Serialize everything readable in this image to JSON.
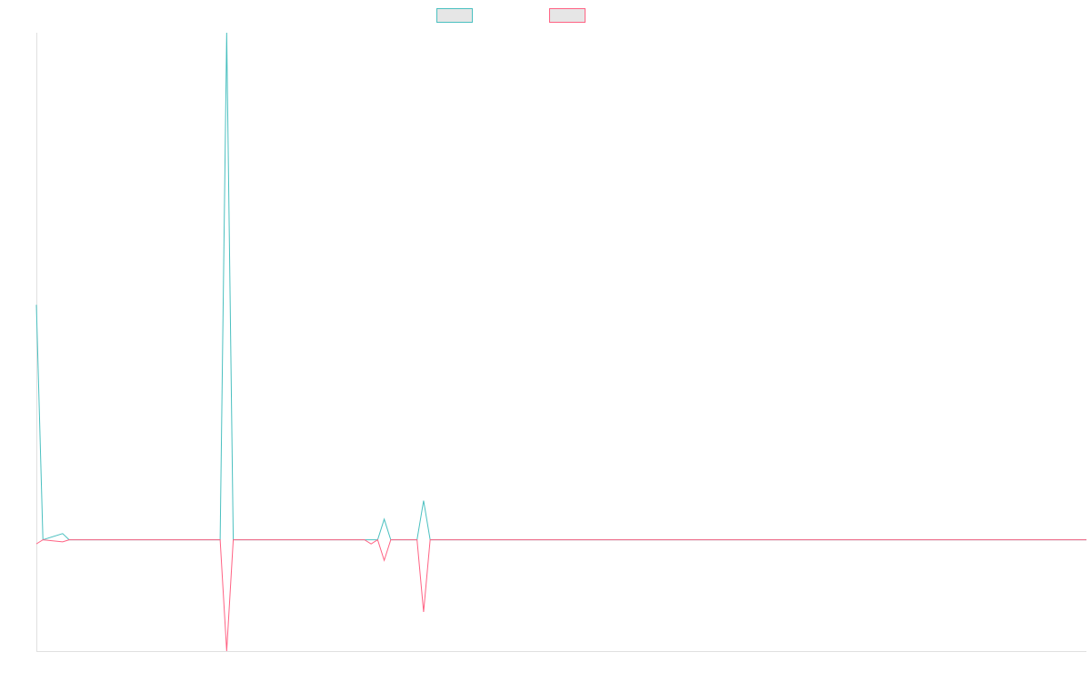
{
  "chart_data": {
    "type": "line",
    "title": "",
    "xlabel": "",
    "ylabel": "",
    "grid": false,
    "legend_position": "top-center",
    "x_count": 160,
    "ylim": [
      -27,
      123
    ],
    "series": [
      {
        "color": "#4bc0c0",
        "points": [
          [
            0,
            57
          ],
          [
            1,
            0
          ],
          [
            4,
            1.5
          ],
          [
            5,
            0
          ],
          [
            28,
            0
          ],
          [
            29,
            123
          ],
          [
            30,
            0
          ],
          [
            52,
            0
          ],
          [
            53,
            5
          ],
          [
            54,
            0
          ],
          [
            58,
            0
          ],
          [
            59,
            9.5
          ],
          [
            60,
            0
          ],
          [
            160,
            0
          ]
        ]
      },
      {
        "color": "#ff6384",
        "points": [
          [
            0,
            -1
          ],
          [
            1,
            0
          ],
          [
            4,
            -0.5
          ],
          [
            5,
            0
          ],
          [
            28,
            0
          ],
          [
            29,
            -27
          ],
          [
            30,
            0
          ],
          [
            50,
            0
          ],
          [
            51,
            -1
          ],
          [
            52,
            0
          ],
          [
            53,
            -5
          ],
          [
            54,
            0
          ],
          [
            58,
            0
          ],
          [
            59,
            -17.5
          ],
          [
            60,
            0
          ],
          [
            160,
            0
          ]
        ]
      }
    ]
  }
}
